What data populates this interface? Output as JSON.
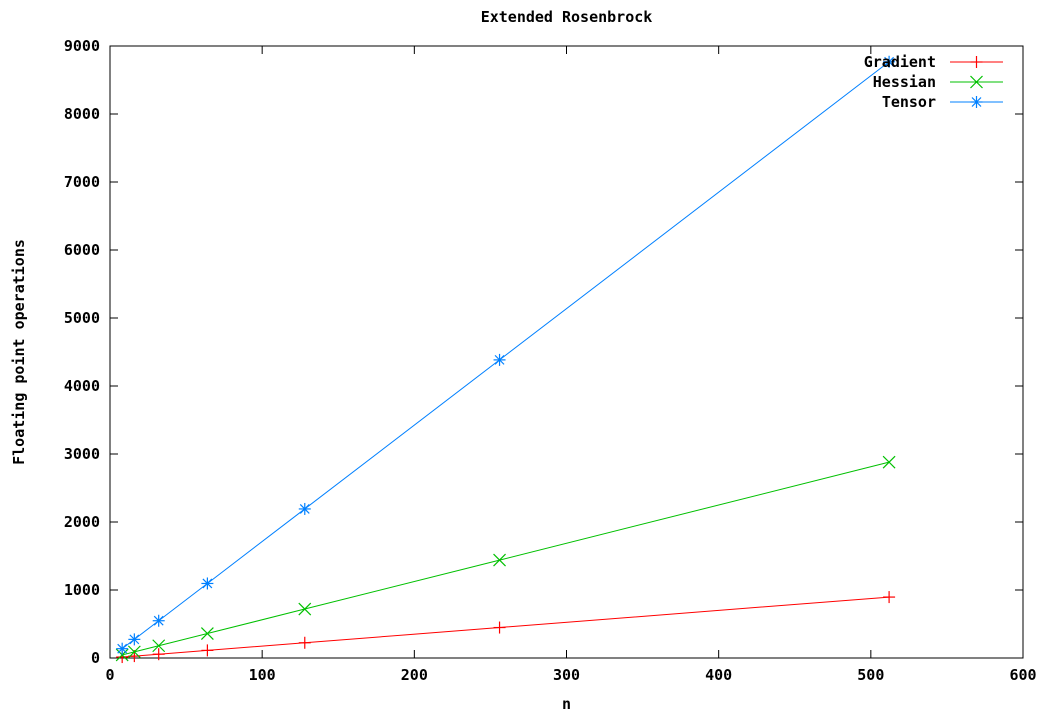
{
  "chart_data": {
    "type": "line",
    "title": "Extended Rosenbrock",
    "xlabel": "n",
    "ylabel": "Floating point operations",
    "xlim": [
      0,
      600
    ],
    "ylim": [
      0,
      9000
    ],
    "x_ticks": [
      0,
      100,
      200,
      300,
      400,
      500,
      600
    ],
    "y_ticks": [
      0,
      1000,
      2000,
      3000,
      4000,
      5000,
      6000,
      7000,
      8000,
      9000
    ],
    "x_tick_labels": [
      "0",
      "100",
      "200",
      "300",
      "400",
      "500",
      "600"
    ],
    "y_tick_labels": [
      "0",
      "1000",
      "2000",
      "3000",
      "4000",
      "5000",
      "6000",
      "7000",
      "8000",
      "9000"
    ],
    "grid": false,
    "legend_position": "top-right",
    "x": [
      8,
      16,
      32,
      64,
      128,
      256,
      512
    ],
    "series": [
      {
        "name": "Gradient",
        "color": "#ff0000",
        "marker": "plus",
        "values": [
          14,
          28,
          56,
          112,
          224,
          448,
          896
        ]
      },
      {
        "name": "Hessian",
        "color": "#00c000",
        "marker": "cross",
        "values": [
          45,
          90,
          180,
          360,
          720,
          1440,
          2880
        ]
      },
      {
        "name": "Tensor",
        "color": "#0080ff",
        "marker": "star",
        "values": [
          137,
          274,
          548,
          1096,
          2192,
          4384,
          8768
        ]
      }
    ]
  }
}
